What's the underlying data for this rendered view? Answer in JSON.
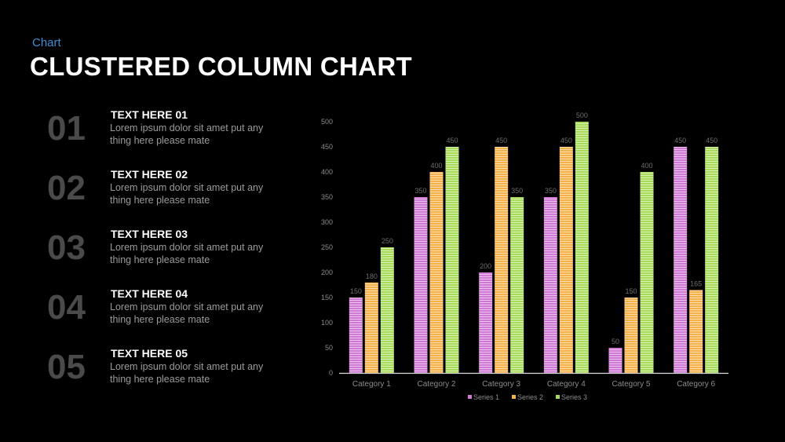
{
  "header": {
    "kicker": "Chart",
    "title": "CLUSTERED COLUMN CHART"
  },
  "items": [
    {
      "num": "01",
      "title": "TEXT HERE 01",
      "body": "Lorem ipsum dolor sit amet put any thing here please mate"
    },
    {
      "num": "02",
      "title": "TEXT HERE 02",
      "body": "Lorem ipsum dolor sit amet put any thing here please mate"
    },
    {
      "num": "03",
      "title": "TEXT HERE 03",
      "body": "Lorem ipsum dolor sit amet put any thing here please mate"
    },
    {
      "num": "04",
      "title": "TEXT HERE 04",
      "body": "Lorem ipsum dolor sit amet put any thing here please mate"
    },
    {
      "num": "05",
      "title": "TEXT HERE 05",
      "body": "Lorem ipsum dolor sit amet put any thing here please mate"
    }
  ],
  "chart_data": {
    "type": "bar",
    "categories": [
      "Category 1",
      "Category 2",
      "Category 3",
      "Category 4",
      "Category 5",
      "Category 6"
    ],
    "series": [
      {
        "name": "Series 1",
        "color": "#d07ad6",
        "values": [
          150,
          350,
          200,
          350,
          50,
          450
        ]
      },
      {
        "name": "Series 2",
        "color": "#f6b24a",
        "values": [
          180,
          400,
          450,
          450,
          150,
          165
        ]
      },
      {
        "name": "Series 3",
        "color": "#a8db5a",
        "values": [
          250,
          450,
          350,
          500,
          400,
          450
        ]
      }
    ],
    "ylim": [
      0,
      500
    ],
    "yticks": [
      0,
      50,
      100,
      150,
      200,
      250,
      300,
      350,
      400,
      450,
      500
    ],
    "grid": false,
    "legend": "bottom",
    "data_labels": true
  }
}
